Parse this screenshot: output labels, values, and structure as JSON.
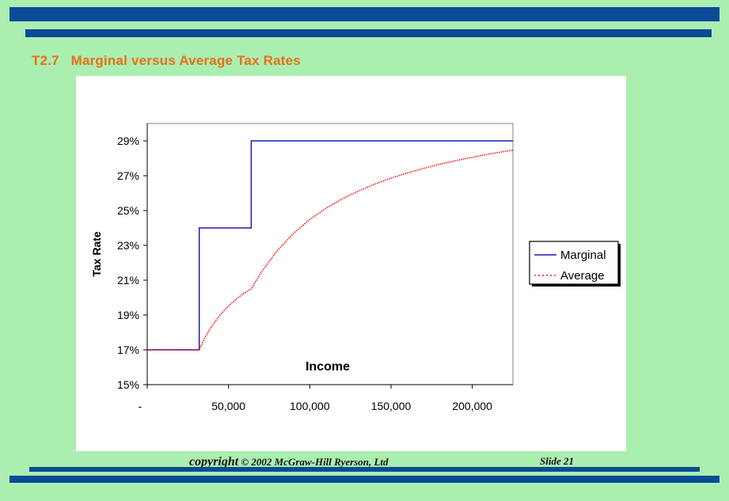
{
  "slide": {
    "title": "T2.7   Marginal versus Average Tax Rates",
    "footer_copyright_word": "copyright",
    "footer_copyright_rest": " © 2002 McGraw-Hill Ryerson, Ltd",
    "footer_slide": "Slide 21",
    "colors": {
      "background": "#aaeeb0",
      "bars": "#0a4a96",
      "title": "#e8701c"
    }
  },
  "chart_data": {
    "type": "line",
    "title": "",
    "xlabel": "Income",
    "ylabel": "Tax Rate",
    "xlim": [
      0,
      225000
    ],
    "ylim": [
      0.15,
      0.3
    ],
    "x_ticks": [
      0,
      50000,
      100000,
      150000,
      200000
    ],
    "x_tick_labels": [
      "-",
      "50,000",
      "100,000",
      "150,000",
      "200,000"
    ],
    "y_ticks": [
      0.15,
      0.17,
      0.19,
      0.21,
      0.23,
      0.25,
      0.27,
      0.29
    ],
    "y_tick_labels": [
      "15%",
      "17%",
      "19%",
      "21%",
      "23%",
      "25%",
      "27%",
      "29%"
    ],
    "grid": false,
    "legend_position": "right",
    "series": [
      {
        "name": "Marginal",
        "color": "#1a1ab4",
        "style": "solid",
        "x": [
          0,
          32000,
          32000,
          64000,
          64000,
          225000
        ],
        "y": [
          0.17,
          0.17,
          0.24,
          0.24,
          0.29,
          0.29
        ]
      },
      {
        "name": "Average",
        "color": "#e81c1c",
        "style": "dotted",
        "x": [
          0,
          32000,
          35000,
          40000,
          45000,
          50000,
          55000,
          60000,
          64000,
          70000,
          80000,
          90000,
          100000,
          110000,
          120000,
          130000,
          140000,
          150000,
          160000,
          170000,
          180000,
          190000,
          200000,
          210000,
          225000
        ],
        "y": [
          0.17,
          0.17,
          0.1762,
          0.184,
          0.1902,
          0.1952,
          0.1993,
          0.2027,
          0.205,
          0.2143,
          0.227,
          0.2369,
          0.2448,
          0.2513,
          0.2567,
          0.2612,
          0.2652,
          0.2686,
          0.2716,
          0.2742,
          0.2766,
          0.2787,
          0.2806,
          0.2824,
          0.2847
        ]
      }
    ]
  }
}
